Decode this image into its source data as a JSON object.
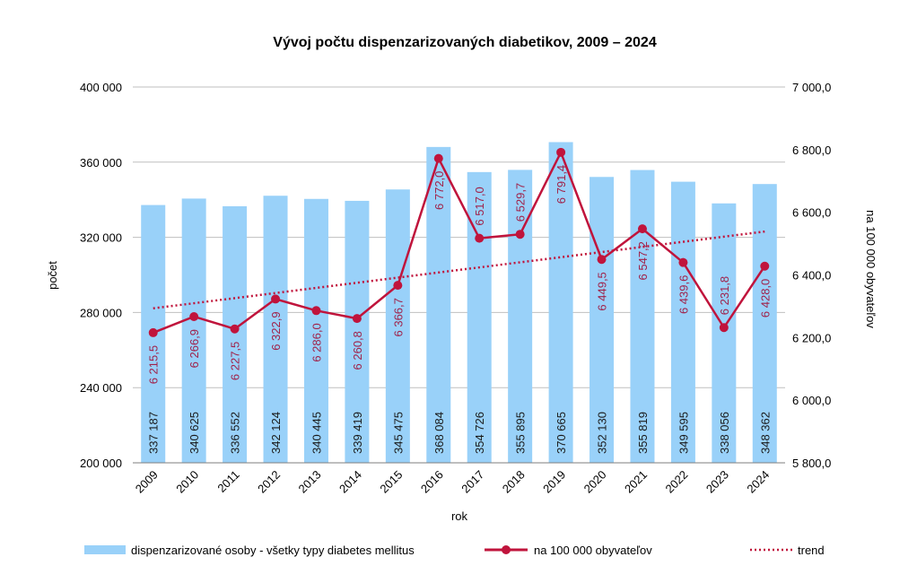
{
  "chart_data": {
    "type": "bar+line",
    "title": "Vývoj počtu dispenzarizovaných diabetikov, 2009 – 2024",
    "xlabel": "rok",
    "ylabel": "počet",
    "y2label": "na 100 000 obyvateľov",
    "categories": [
      "2009",
      "2010",
      "2011",
      "2012",
      "2013",
      "2014",
      "2015",
      "2016",
      "2017",
      "2018",
      "2019",
      "2020",
      "2021",
      "2022",
      "2023",
      "2024"
    ],
    "ylim": [
      200000,
      400000
    ],
    "yticks": [
      200000,
      240000,
      280000,
      320000,
      360000,
      400000
    ],
    "ytick_labels": [
      "200 000",
      "240 000",
      "280 000",
      "320 000",
      "360 000",
      "400 000"
    ],
    "y2lim": [
      5800,
      7000
    ],
    "y2ticks": [
      5800,
      6000,
      6200,
      6400,
      6600,
      6800,
      7000
    ],
    "y2tick_labels": [
      "5 800,0",
      "6 000,0",
      "6 200,0",
      "6 400,0",
      "6 600,0",
      "6 800,0",
      "7 000,0"
    ],
    "grid": true,
    "legend_position": "bottom",
    "series": [
      {
        "name": "dispenzarizované osoby - všetky typy diabetes mellitus",
        "type": "bar",
        "axis": "left",
        "color": "#99D1F9",
        "values": [
          337187,
          340625,
          336552,
          342124,
          340445,
          339419,
          345475,
          368084,
          354726,
          355895,
          370665,
          352130,
          355819,
          349595,
          338056,
          348362
        ],
        "labels": [
          "337 187",
          "340 625",
          "336 552",
          "342 124",
          "340 445",
          "339 419",
          "345 475",
          "368 084",
          "354 726",
          "355 895",
          "370 665",
          "352 130",
          "355 819",
          "349 595",
          "338 056",
          "348 362"
        ]
      },
      {
        "name": "na 100 000 obyvateľov",
        "type": "line",
        "axis": "right",
        "color": "#C0143C",
        "values": [
          6215.5,
          6266.9,
          6227.5,
          6322.9,
          6286.0,
          6260.8,
          6366.7,
          6772.0,
          6517.0,
          6529.7,
          6791.4,
          6449.5,
          6547.2,
          6439.6,
          6231.8,
          6428.0
        ],
        "labels": [
          "6 215,5",
          "6 266,9",
          "6 227,5",
          "6 322,9",
          "6 286,0",
          "6 260,8",
          "6 366,7",
          "6 772,0",
          "6 517,0",
          "6 529,7",
          "6 791,4",
          "6 449,5",
          "6 547,2",
          "6 439,6",
          "6 231,8",
          "6 428,0"
        ]
      },
      {
        "name": "trend",
        "type": "linear-trend",
        "axis": "right",
        "color": "#C0143C"
      }
    ]
  }
}
